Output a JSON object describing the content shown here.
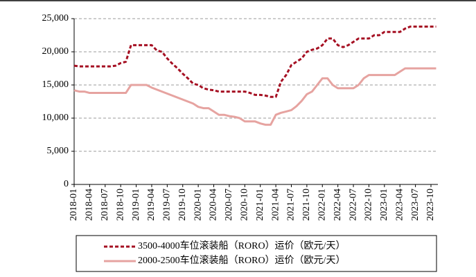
{
  "chart_data": {
    "type": "line",
    "categories": [
      "2018-01",
      null,
      null,
      "2018-04",
      null,
      null,
      "2018-07",
      null,
      null,
      "2018-10",
      null,
      null,
      "2019-01",
      null,
      null,
      "2019-04",
      null,
      null,
      "2019-07",
      null,
      null,
      "2019-10",
      null,
      null,
      "2020-01",
      null,
      null,
      "2020-04",
      null,
      null,
      "2020-07",
      null,
      null,
      "2020-10",
      null,
      null,
      "2021-01",
      null,
      null,
      "2021-04",
      null,
      null,
      "2021-07",
      null,
      null,
      "2021-10",
      null,
      null,
      "2022-01",
      null,
      null,
      "2022-04",
      null,
      null,
      "2022-07",
      null,
      null,
      "2022-10",
      null,
      null,
      "2023-01",
      null,
      null,
      "2023-04",
      null,
      null,
      "2023-07",
      null,
      null,
      "2023-10",
      null
    ],
    "series": [
      {
        "name": "3500-4000车位滚装船（RORO）运价（欧元/天）",
        "color": "#a50f22",
        "dashed": true,
        "values": [
          17900,
          17800,
          17800,
          17800,
          17800,
          17800,
          17800,
          17800,
          17900,
          18300,
          18500,
          21000,
          21000,
          21000,
          21000,
          21000,
          20200,
          20000,
          19000,
          18200,
          17500,
          16700,
          16000,
          15200,
          15000,
          14500,
          14300,
          14200,
          14000,
          14000,
          14000,
          14000,
          14000,
          14000,
          13800,
          13500,
          13500,
          13400,
          13200,
          13200,
          15500,
          16500,
          18000,
          18500,
          19000,
          20000,
          20300,
          20500,
          21000,
          22000,
          22000,
          21000,
          20700,
          21000,
          21500,
          22000,
          22000,
          22000,
          22500,
          22500,
          23000,
          23000,
          23000,
          23000,
          23500,
          23800,
          23800,
          23800,
          23800,
          23800,
          23800
        ]
      },
      {
        "name": "2000-2500车位滚装船（RORO）运价（欧元/天）",
        "color": "#e6a3a0",
        "dashed": false,
        "values": [
          14200,
          14000,
          14000,
          13800,
          13800,
          13800,
          13800,
          13800,
          13800,
          13800,
          13800,
          15000,
          15000,
          15000,
          15000,
          14600,
          14300,
          14000,
          13700,
          13400,
          13100,
          12800,
          12500,
          12200,
          11700,
          11500,
          11500,
          11000,
          10500,
          10500,
          10300,
          10200,
          10000,
          9500,
          9500,
          9500,
          9200,
          9000,
          9000,
          10500,
          10800,
          11000,
          11200,
          11800,
          12600,
          13600,
          14000,
          15000,
          16000,
          16000,
          15000,
          14500,
          14500,
          14500,
          14500,
          15000,
          16000,
          16500,
          16500,
          16500,
          16500,
          16500,
          16500,
          17000,
          17500,
          17500,
          17500,
          17500,
          17500,
          17500,
          17500
        ]
      }
    ],
    "ylim": [
      0,
      25000
    ],
    "yticks": [
      0,
      {
        "value": 5000,
        "label": "5,000"
      },
      {
        "value": 10000,
        "label": "10,000"
      },
      {
        "value": 15000,
        "label": "15,000"
      },
      {
        "value": 20000,
        "label": "20,000"
      },
      {
        "value": 25000,
        "label": "25,000"
      }
    ],
    "grid": true
  }
}
